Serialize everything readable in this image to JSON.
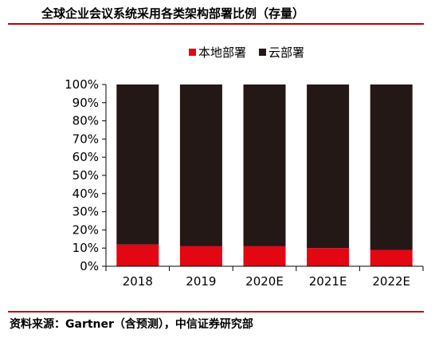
{
  "title": "全球企业会议系统采用各类架构部署比例（存量）",
  "source": "资料来源：Gartner（含预测），中信证券研究部",
  "chart_data": {
    "type": "bar",
    "stacked": true,
    "categories": [
      "2018",
      "2019",
      "2020E",
      "2021E",
      "2022E"
    ],
    "series": [
      {
        "name": "本地部署",
        "color": "#e30613",
        "values": [
          12,
          11,
          11,
          10,
          9
        ]
      },
      {
        "name": "云部署",
        "color": "#231815",
        "values": [
          88,
          89,
          89,
          90,
          91
        ]
      }
    ],
    "yticks": [
      "0%",
      "10%",
      "20%",
      "30%",
      "40%",
      "50%",
      "60%",
      "70%",
      "80%",
      "90%",
      "100%"
    ],
    "ylim": [
      0,
      100
    ],
    "legend": "top-right",
    "grid": false
  }
}
